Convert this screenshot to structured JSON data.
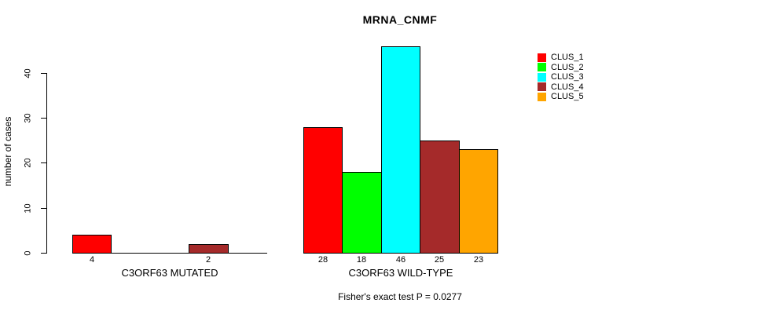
{
  "title": "MRNA_CNMF",
  "footer": "Fisher's exact test P = 0.0277",
  "y_axis": {
    "label": "number of cases",
    "tick_labels": [
      "0",
      "10",
      "20",
      "30",
      "40"
    ]
  },
  "legend": {
    "items": [
      {
        "label": "CLUS_1",
        "color": "#FF0000"
      },
      {
        "label": "CLUS_2",
        "color": "#00FF00"
      },
      {
        "label": "CLUS_3",
        "color": "#00FFFF"
      },
      {
        "label": "CLUS_4",
        "color": "#A52A2A"
      },
      {
        "label": "CLUS_5",
        "color": "#FFA500"
      }
    ]
  },
  "chart_data": {
    "type": "bar",
    "title": "MRNA_CNMF",
    "xlabel": "",
    "ylabel": "number of cases",
    "ylim": [
      0,
      46
    ],
    "yticks": [
      0,
      10,
      20,
      30,
      40
    ],
    "grid": false,
    "legend_position": "top-right",
    "categories": [
      "C3ORF63 MUTATED",
      "C3ORF63 WILD-TYPE"
    ],
    "series": [
      {
        "name": "CLUS_1",
        "color": "#FF0000",
        "values": [
          4,
          28
        ]
      },
      {
        "name": "CLUS_2",
        "color": "#00FF00",
        "values": [
          0,
          18
        ]
      },
      {
        "name": "CLUS_3",
        "color": "#00FFFF",
        "values": [
          0,
          46
        ]
      },
      {
        "name": "CLUS_4",
        "color": "#A52A2A",
        "values": [
          2,
          25
        ]
      },
      {
        "name": "CLUS_5",
        "color": "#FFA500",
        "values": [
          0,
          23
        ]
      }
    ],
    "bar_value_labels": [
      [
        "4",
        "",
        "",
        "2",
        ""
      ],
      [
        "28",
        "18",
        "46",
        "25",
        "23"
      ]
    ],
    "annotation": "Fisher's exact test P = 0.0277"
  }
}
